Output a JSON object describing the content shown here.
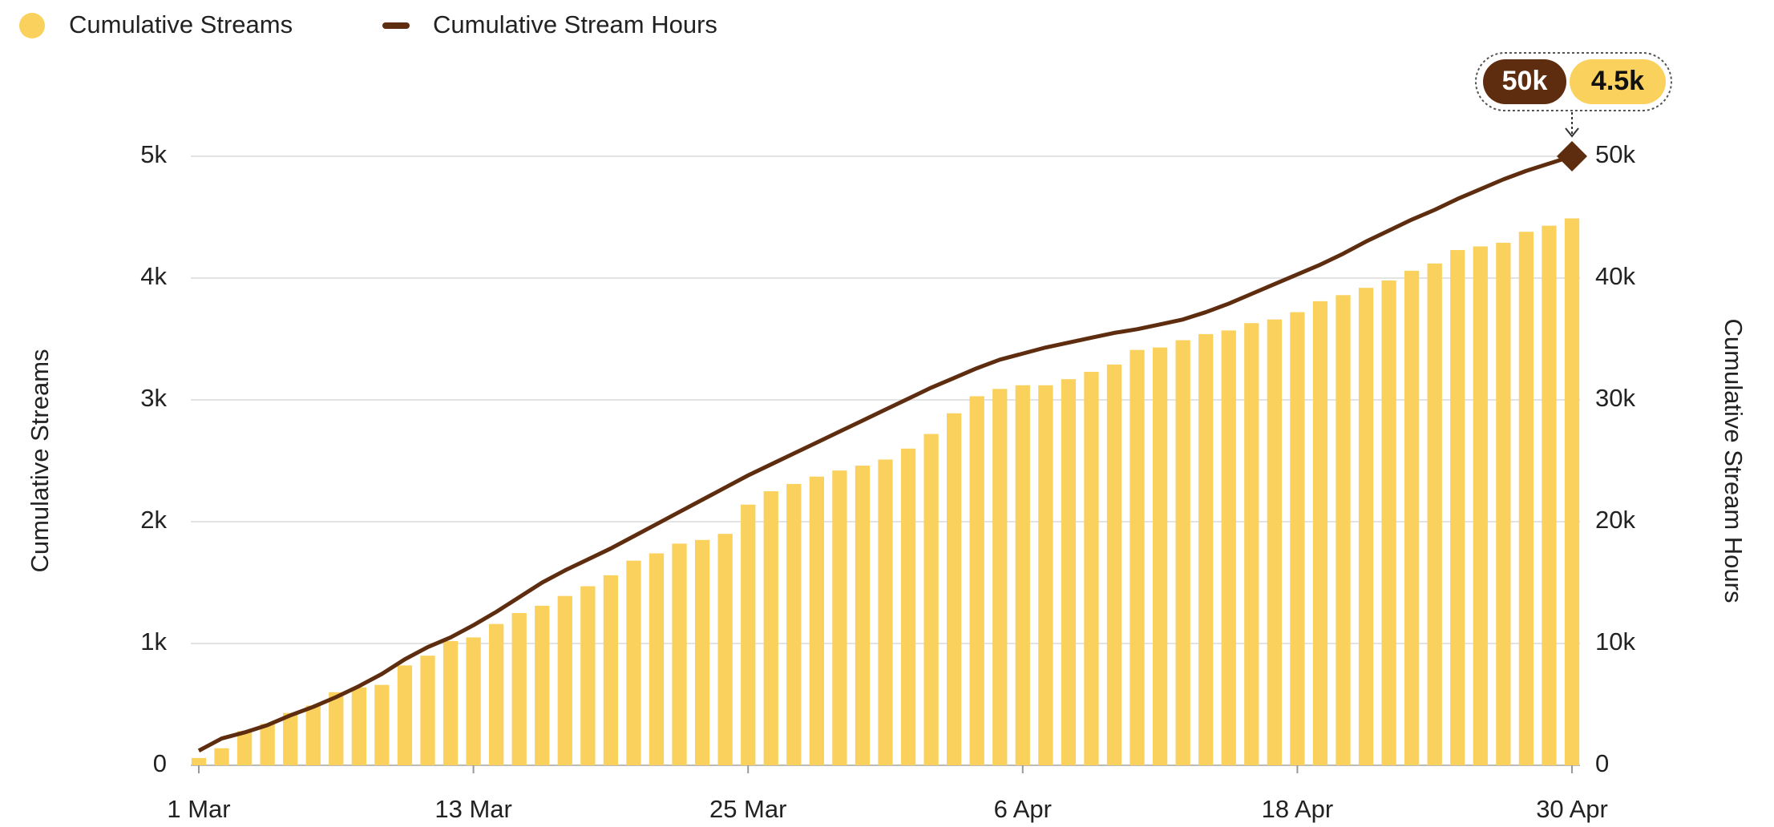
{
  "chart_data": {
    "type": "bar-line",
    "categories": [
      "1 Mar",
      null,
      null,
      null,
      null,
      null,
      null,
      null,
      null,
      null,
      null,
      null,
      "13 Mar",
      null,
      null,
      null,
      null,
      null,
      null,
      null,
      null,
      null,
      null,
      null,
      "25 Mar",
      null,
      null,
      null,
      null,
      null,
      null,
      null,
      null,
      null,
      null,
      null,
      "6 Apr",
      null,
      null,
      null,
      null,
      null,
      null,
      null,
      null,
      null,
      null,
      null,
      "18 Apr",
      null,
      null,
      null,
      null,
      null,
      null,
      null,
      null,
      null,
      null,
      null,
      "30 Apr"
    ],
    "series": [
      {
        "name": "Cumulative Streams",
        "type": "bar",
        "color": "#f9d15c",
        "axis": "y",
        "values": [
          60,
          140,
          280,
          340,
          430,
          490,
          600,
          640,
          660,
          820,
          900,
          1020,
          1050,
          1160,
          1250,
          1310,
          1390,
          1470,
          1560,
          1680,
          1740,
          1820,
          1850,
          1900,
          2140,
          2250,
          2310,
          2370,
          2420,
          2460,
          2510,
          2600,
          2720,
          2890,
          3030,
          3090,
          3120,
          3120,
          3170,
          3230,
          3290,
          3410,
          3430,
          3490,
          3540,
          3570,
          3630,
          3660,
          3720,
          3810,
          3860,
          3920,
          3980,
          4060,
          4120,
          4230,
          4260,
          4290,
          4380,
          4430,
          4490
        ]
      },
      {
        "name": "Cumulative Stream Hours",
        "type": "line",
        "color": "#5e2c0e",
        "axis": "y2",
        "values": [
          1200,
          2200,
          2700,
          3300,
          4100,
          4800,
          5600,
          6500,
          7500,
          8700,
          9700,
          10500,
          11500,
          12600,
          13800,
          15000,
          16000,
          16900,
          17800,
          18800,
          19800,
          20800,
          21800,
          22800,
          23800,
          24700,
          25600,
          26500,
          27400,
          28300,
          29200,
          30100,
          31000,
          31800,
          32600,
          33300,
          33800,
          34300,
          34700,
          35100,
          35500,
          35800,
          36200,
          36600,
          37200,
          37900,
          38700,
          39500,
          40300,
          41100,
          42000,
          43000,
          43900,
          44800,
          45600,
          46500,
          47300,
          48100,
          48800,
          49400,
          50000
        ]
      }
    ],
    "ylabel": "Cumulative Streams",
    "y2label": "Cumulative Stream Hours",
    "ylim": [
      0,
      5000
    ],
    "yticks": [
      0,
      {
        "value": 1000,
        "label": "1k"
      },
      {
        "value": 2000,
        "label": "2k"
      },
      {
        "value": 3000,
        "label": "3k"
      },
      {
        "value": 4000,
        "label": "4k"
      },
      {
        "value": 5000,
        "label": "5k"
      }
    ],
    "y2lim": [
      0,
      50000
    ],
    "y2ticks": [
      0,
      {
        "value": 10000,
        "label": "10k"
      },
      {
        "value": 20000,
        "label": "20k"
      },
      {
        "value": 30000,
        "label": "30k"
      },
      {
        "value": 40000,
        "label": "40k"
      },
      {
        "value": 50000,
        "label": "50k"
      }
    ],
    "grid": true,
    "legend": "top-left",
    "annotations": [
      "50k",
      "4.5k"
    ]
  }
}
